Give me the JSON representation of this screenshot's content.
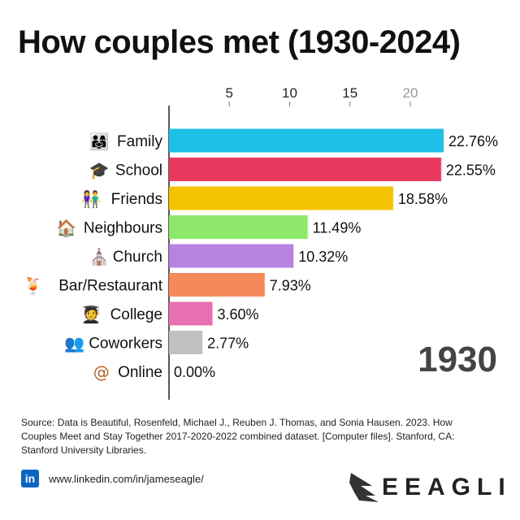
{
  "title": "How couples met (1930-2024)",
  "year": "1930",
  "source": "Source: Data is Beautiful, Rosenfeld, Michael J., Reuben J. Thomas, and Sonia Hausen. 2023. How Couples Meet and Stay Together 2017-2020-2022 combined dataset. [Computer files]. Stanford, CA: Stanford University Libraries.",
  "footer": {
    "linkedin_url": "www.linkedin.com/in/jameseagle/",
    "linkedin_icon": "in",
    "brand": "EEAGLI"
  },
  "chart_data": {
    "type": "bar",
    "orientation": "horizontal",
    "categories": [
      "Family",
      "School",
      "Friends",
      "Neighbours",
      "Church",
      "Bar/Restaurant",
      "College",
      "Coworkers",
      "Online"
    ],
    "values": [
      22.76,
      22.55,
      18.58,
      11.49,
      10.32,
      7.93,
      3.6,
      2.77,
      0.0
    ],
    "value_labels": [
      "22.76%",
      "22.55%",
      "18.58%",
      "11.49%",
      "10.32%",
      "7.93%",
      "3.60%",
      "2.77%",
      "0.00%"
    ],
    "icons": [
      "👨‍👩‍👧",
      "🎓",
      "👫",
      "🏠",
      "⛪",
      "🍹",
      "🧑‍🎓",
      "👥",
      "@"
    ],
    "colors": [
      "#1ec0e8",
      "#e8395f",
      "#f5c400",
      "#8ee86a",
      "#b882e0",
      "#f5895a",
      "#e870b0",
      "#c0c0c0",
      "#c0c0c0"
    ],
    "xticks": [
      5,
      10,
      15,
      20
    ],
    "xlim": [
      0,
      22.8
    ],
    "xaxis_position": "top",
    "grid": false
  }
}
